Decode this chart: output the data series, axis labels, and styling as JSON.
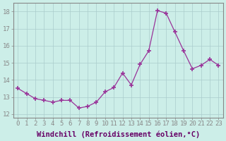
{
  "x": [
    0,
    1,
    2,
    3,
    4,
    5,
    6,
    7,
    8,
    9,
    10,
    11,
    12,
    13,
    14,
    15,
    16,
    17,
    18,
    19,
    20,
    21,
    22,
    23
  ],
  "y": [
    13.5,
    13.2,
    12.9,
    12.8,
    12.7,
    12.8,
    12.8,
    12.35,
    12.45,
    12.7,
    13.3,
    13.55,
    14.4,
    13.7,
    14.9,
    15.7,
    18.05,
    17.9,
    16.8,
    15.7,
    14.65,
    14.85,
    15.2,
    14.85
  ],
  "line_color": "#993399",
  "marker": "+",
  "marker_size": 4,
  "marker_linewidth": 1.2,
  "bg_color": "#cceee8",
  "grid_color": "#aacccc",
  "xlabel": "Windchill (Refroidissement éolien,°C)",
  "xlabel_fontsize": 7.5,
  "tick_fontsize": 6.5,
  "ylim": [
    11.8,
    18.5
  ],
  "yticks": [
    12,
    13,
    14,
    15,
    16,
    17,
    18
  ],
  "xticks": [
    0,
    1,
    2,
    3,
    4,
    5,
    6,
    7,
    8,
    9,
    10,
    11,
    12,
    13,
    14,
    15,
    16,
    17,
    18,
    19,
    20,
    21,
    22,
    23
  ],
  "spine_color": "#888888"
}
